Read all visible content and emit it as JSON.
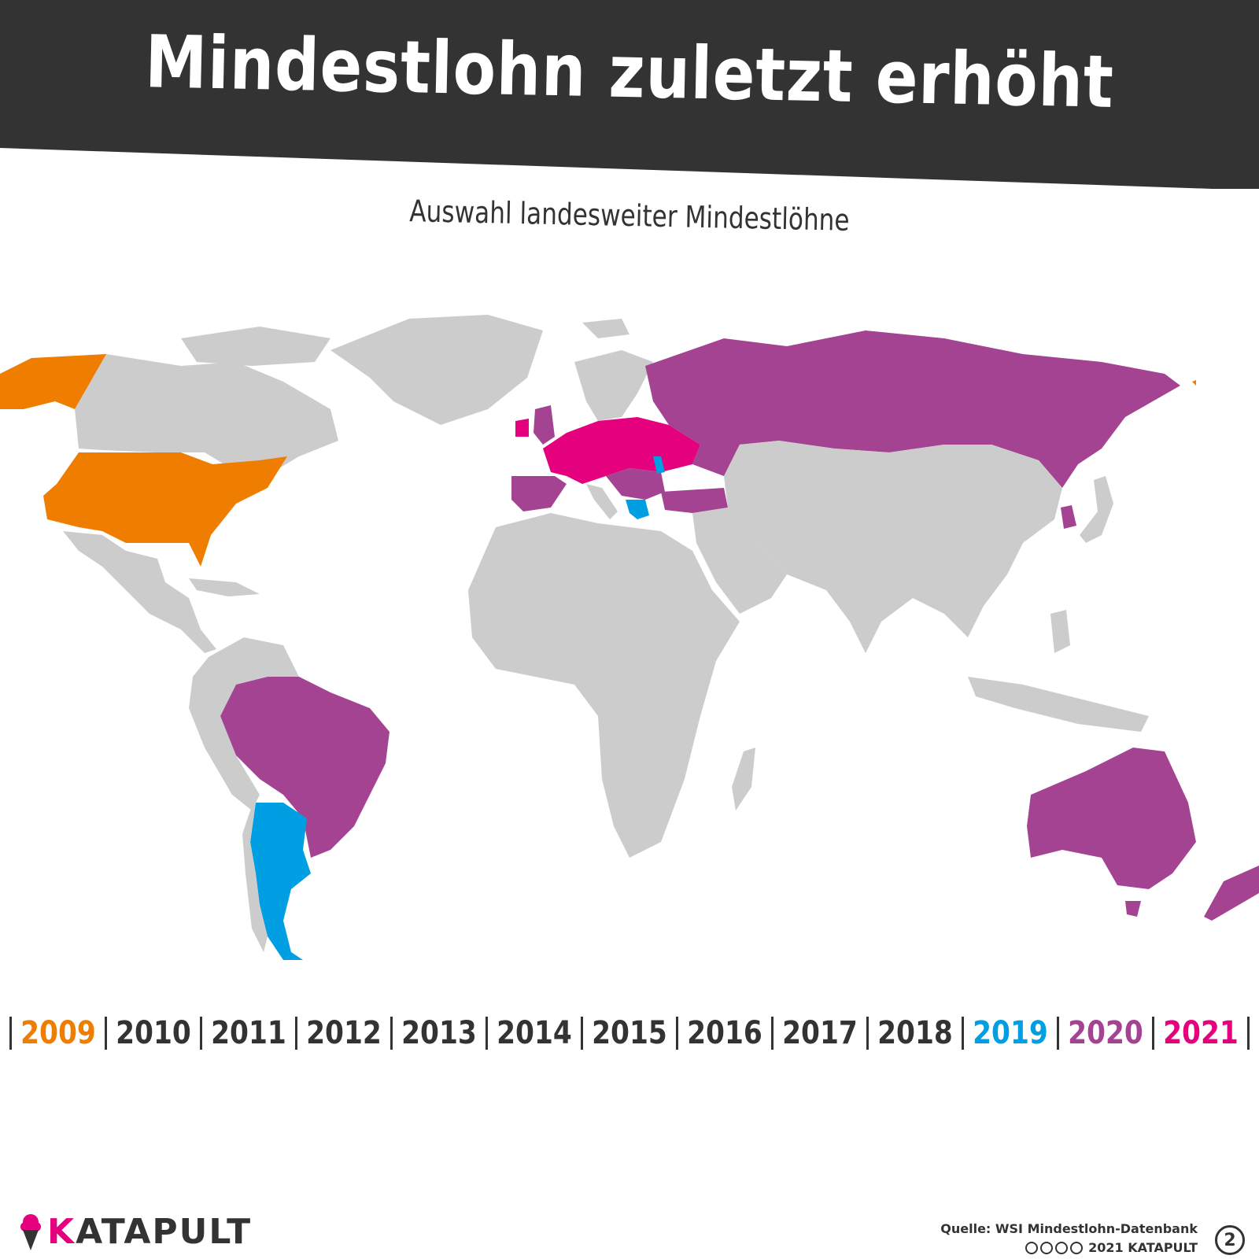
{
  "title": "Mindestlohn zuletzt erhöht",
  "subtitle": "Auswahl landesweiter Mindestlöhne",
  "colors": {
    "header_bg": "#333333",
    "land_default": "#cccccc",
    "year_2009": "#ef7d00",
    "year_2019": "#009fe3",
    "year_2020": "#a54393",
    "year_2021": "#e5007e",
    "text_dark": "#333333"
  },
  "timeline": {
    "years": [
      {
        "label": "2009",
        "color": "#ef7d00"
      },
      {
        "label": "2010",
        "color": "#333333"
      },
      {
        "label": "2011",
        "color": "#333333"
      },
      {
        "label": "2012",
        "color": "#333333"
      },
      {
        "label": "2013",
        "color": "#333333"
      },
      {
        "label": "2014",
        "color": "#333333"
      },
      {
        "label": "2015",
        "color": "#333333"
      },
      {
        "label": "2016",
        "color": "#333333"
      },
      {
        "label": "2017",
        "color": "#333333"
      },
      {
        "label": "2018",
        "color": "#333333"
      },
      {
        "label": "2019",
        "color": "#009fe3"
      },
      {
        "label": "2020",
        "color": "#a54393"
      },
      {
        "label": "2021",
        "color": "#e5007e"
      }
    ]
  },
  "map_regions": {
    "year_2009": [
      "USA",
      "Alaska"
    ],
    "year_2019": [
      "Argentinien",
      "Griechenland",
      "Moldau"
    ],
    "year_2020": [
      "Russland",
      "Brasilien",
      "Australien",
      "Neuseeland",
      "Spanien",
      "Portugal",
      "Türkei",
      "Südkorea",
      "Vereinigtes Königreich",
      "Rumänien",
      "Bulgarien"
    ],
    "year_2021": [
      "Deutschland",
      "Frankreich",
      "Polen",
      "Irland",
      "Ukraine",
      "Niederlande",
      "Belgien",
      "Tschechien"
    ]
  },
  "footer": {
    "logo": "KATAPULT",
    "source": "Quelle: WSI Mindestlohn-Datenbank",
    "license": "2021 KATAPULT",
    "badge": "2"
  }
}
